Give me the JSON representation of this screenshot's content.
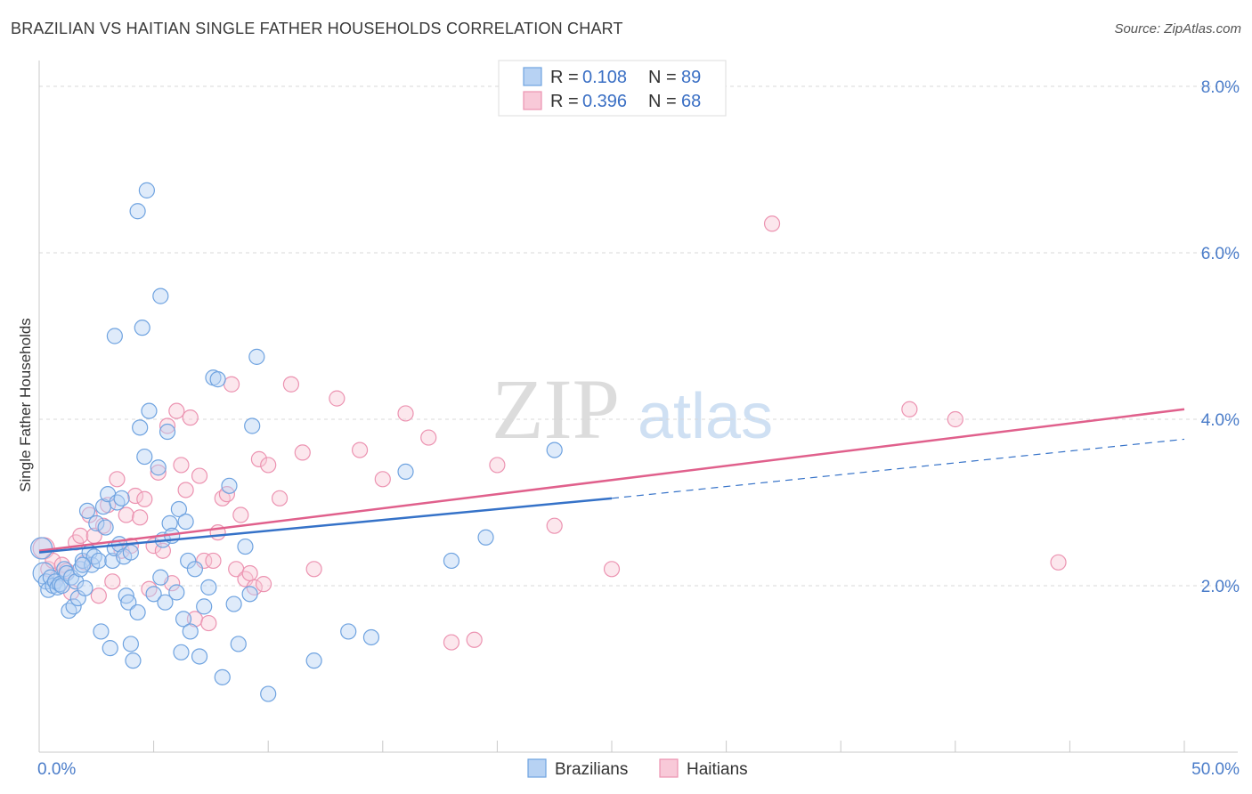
{
  "header": {
    "title": "BRAZILIAN VS HAITIAN SINGLE FATHER HOUSEHOLDS CORRELATION CHART",
    "source": "Source: ZipAtlas.com"
  },
  "watermark": {
    "part1": "ZIP",
    "part2": "atlas"
  },
  "colors": {
    "brazilians": "#6fa3e0",
    "brazilians_fill": "#b7d2f3",
    "brazilians_line": "#3572c8",
    "haitians": "#ec93b1",
    "haitians_fill": "#f8c9d8",
    "haitians_line": "#e0608c",
    "grid": "#d9d9d9",
    "axis_label": "#4a7cc9"
  },
  "legend": {
    "rows": [
      {
        "r_label": "R =",
        "r_value": "0.108",
        "n_label": "N =",
        "n_value": "89"
      },
      {
        "r_label": "R =",
        "r_value": "0.396",
        "n_label": "N =",
        "n_value": "68"
      }
    ]
  },
  "chart_data": {
    "type": "scatter",
    "title": "BRAZILIAN VS HAITIAN SINGLE FATHER HOUSEHOLDS CORRELATION CHART",
    "xlabel": "",
    "ylabel": "Single Father Households",
    "xlim": [
      0,
      50
    ],
    "ylim": [
      0,
      8.3
    ],
    "x_tick_labels": [
      "0.0%",
      "50.0%"
    ],
    "y_ticks": [
      2,
      4,
      6,
      8
    ],
    "y_tick_labels": [
      "2.0%",
      "4.0%",
      "6.0%",
      "8.0%"
    ],
    "legend_position": "top-center",
    "bottom_legend": [
      "Brazilians",
      "Haitians"
    ],
    "series": [
      {
        "name": "Brazilians",
        "R": 0.108,
        "N": 89,
        "trend": {
          "x0": 0,
          "y0": 2.4,
          "x1": 25,
          "y1": 3.05,
          "dash_to_x": 50,
          "dash_to_y": 3.76
        },
        "points": [
          [
            0.1,
            2.45
          ],
          [
            0.2,
            2.15
          ],
          [
            0.3,
            2.05
          ],
          [
            0.4,
            1.95
          ],
          [
            0.5,
            2.1
          ],
          [
            0.6,
            2.0
          ],
          [
            0.7,
            2.05
          ],
          [
            0.8,
            1.98
          ],
          [
            0.9,
            2.02
          ],
          [
            1.0,
            2.0
          ],
          [
            1.1,
            2.2
          ],
          [
            1.2,
            2.15
          ],
          [
            1.3,
            1.7
          ],
          [
            1.4,
            2.1
          ],
          [
            1.5,
            1.75
          ],
          [
            1.6,
            2.05
          ],
          [
            1.7,
            1.85
          ],
          [
            1.8,
            2.2
          ],
          [
            1.9,
            2.3
          ],
          [
            2.0,
            1.97
          ],
          [
            2.1,
            2.9
          ],
          [
            2.2,
            2.4
          ],
          [
            2.3,
            2.25
          ],
          [
            2.4,
            2.35
          ],
          [
            2.5,
            2.75
          ],
          [
            2.6,
            2.3
          ],
          [
            2.7,
            1.45
          ],
          [
            2.8,
            2.95
          ],
          [
            2.9,
            2.7
          ],
          [
            3.0,
            3.1
          ],
          [
            3.1,
            1.25
          ],
          [
            3.2,
            2.3
          ],
          [
            3.3,
            2.45
          ],
          [
            3.4,
            3.0
          ],
          [
            3.5,
            2.5
          ],
          [
            3.6,
            3.05
          ],
          [
            3.7,
            2.35
          ],
          [
            3.8,
            1.88
          ],
          [
            3.9,
            1.8
          ],
          [
            4.0,
            2.4
          ],
          [
            4.1,
            1.1
          ],
          [
            4.3,
            1.68
          ],
          [
            4.4,
            3.9
          ],
          [
            4.5,
            5.1
          ],
          [
            4.6,
            3.55
          ],
          [
            4.7,
            6.75
          ],
          [
            4.8,
            4.1
          ],
          [
            5.0,
            1.9
          ],
          [
            5.2,
            3.42
          ],
          [
            5.3,
            2.1
          ],
          [
            5.4,
            2.55
          ],
          [
            5.5,
            1.8
          ],
          [
            5.6,
            3.85
          ],
          [
            5.7,
            2.75
          ],
          [
            5.8,
            2.6
          ],
          [
            6.0,
            1.92
          ],
          [
            6.1,
            2.92
          ],
          [
            6.2,
            1.2
          ],
          [
            6.3,
            1.6
          ],
          [
            6.4,
            2.77
          ],
          [
            6.5,
            2.3
          ],
          [
            6.8,
            2.2
          ],
          [
            7.0,
            1.15
          ],
          [
            7.2,
            1.75
          ],
          [
            7.4,
            1.98
          ],
          [
            7.6,
            4.5
          ],
          [
            7.8,
            4.48
          ],
          [
            8.0,
            0.9
          ],
          [
            8.3,
            3.2
          ],
          [
            8.5,
            1.78
          ],
          [
            8.7,
            1.3
          ],
          [
            9.0,
            2.47
          ],
          [
            9.2,
            1.9
          ],
          [
            9.3,
            3.92
          ],
          [
            9.5,
            4.75
          ],
          [
            10.0,
            0.7
          ],
          [
            1.9,
            2.25
          ],
          [
            3.3,
            5.0
          ],
          [
            4.3,
            6.5
          ],
          [
            5.3,
            5.48
          ],
          [
            6.6,
            1.45
          ],
          [
            13.5,
            1.45
          ],
          [
            14.5,
            1.38
          ],
          [
            16.0,
            3.37
          ],
          [
            18.0,
            2.3
          ],
          [
            19.5,
            2.58
          ],
          [
            22.5,
            3.63
          ],
          [
            4.0,
            1.3
          ],
          [
            12.0,
            1.1
          ]
        ]
      },
      {
        "name": "Haitians",
        "R": 0.396,
        "N": 68,
        "trend": {
          "x0": 0,
          "y0": 2.42,
          "x1": 50,
          "y1": 4.12
        },
        "points": [
          [
            0.2,
            2.45
          ],
          [
            0.4,
            2.2
          ],
          [
            0.6,
            2.3
          ],
          [
            0.8,
            2.1
          ],
          [
            1.0,
            2.25
          ],
          [
            1.2,
            2.18
          ],
          [
            1.4,
            1.92
          ],
          [
            1.6,
            2.52
          ],
          [
            1.8,
            2.6
          ],
          [
            2.0,
            2.28
          ],
          [
            2.2,
            2.85
          ],
          [
            2.4,
            2.6
          ],
          [
            2.6,
            1.88
          ],
          [
            2.8,
            2.72
          ],
          [
            3.0,
            2.97
          ],
          [
            3.2,
            2.05
          ],
          [
            3.4,
            3.28
          ],
          [
            3.6,
            2.42
          ],
          [
            3.8,
            2.85
          ],
          [
            4.0,
            2.48
          ],
          [
            4.2,
            3.08
          ],
          [
            4.4,
            2.82
          ],
          [
            4.6,
            3.04
          ],
          [
            4.8,
            1.96
          ],
          [
            5.0,
            2.48
          ],
          [
            5.2,
            3.36
          ],
          [
            5.4,
            2.42
          ],
          [
            5.6,
            3.92
          ],
          [
            5.8,
            2.03
          ],
          [
            6.0,
            4.1
          ],
          [
            6.2,
            3.45
          ],
          [
            6.4,
            3.15
          ],
          [
            6.6,
            4.02
          ],
          [
            6.8,
            1.6
          ],
          [
            7.0,
            3.32
          ],
          [
            7.2,
            2.3
          ],
          [
            7.4,
            1.55
          ],
          [
            7.6,
            2.3
          ],
          [
            7.8,
            2.64
          ],
          [
            8.0,
            3.05
          ],
          [
            8.2,
            3.1
          ],
          [
            8.4,
            4.42
          ],
          [
            8.6,
            2.2
          ],
          [
            8.8,
            2.85
          ],
          [
            9.0,
            2.08
          ],
          [
            9.2,
            2.15
          ],
          [
            9.4,
            1.98
          ],
          [
            9.6,
            3.52
          ],
          [
            9.8,
            2.02
          ],
          [
            10.0,
            3.45
          ],
          [
            10.5,
            3.05
          ],
          [
            11.0,
            4.42
          ],
          [
            11.5,
            3.6
          ],
          [
            12.0,
            2.2
          ],
          [
            13.0,
            4.25
          ],
          [
            14.0,
            3.63
          ],
          [
            15.0,
            3.28
          ],
          [
            16.0,
            4.07
          ],
          [
            17.0,
            3.78
          ],
          [
            18.0,
            1.32
          ],
          [
            19.0,
            1.35
          ],
          [
            20.0,
            3.45
          ],
          [
            22.5,
            2.72
          ],
          [
            25.0,
            2.2
          ],
          [
            32.0,
            6.35
          ],
          [
            38.0,
            4.12
          ],
          [
            40.0,
            4.0
          ],
          [
            44.5,
            2.28
          ]
        ]
      }
    ]
  }
}
